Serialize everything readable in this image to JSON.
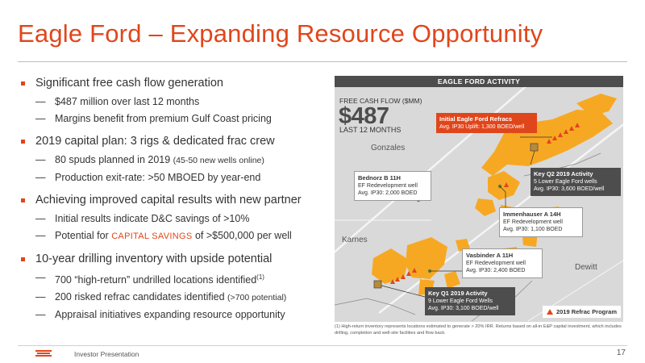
{
  "title": "Eagle Ford – Expanding Resource Opportunity",
  "bullets": [
    {
      "text": "Significant free cash flow generation",
      "subs": [
        "$487 million over last 12 months",
        "Margins benefit from premium Gulf Coast pricing"
      ]
    },
    {
      "text": "2019 capital plan: 3 rigs & dedicated frac crew",
      "sub1_main": "80 spuds planned in 2019 ",
      "sub1_small": "(45-50 new wells online)",
      "sub2": "Production exit-rate: >50 MBOED by year-end"
    },
    {
      "text": "Achieving improved capital results with new partner",
      "sub1": "Initial results indicate D&C savings of >10%",
      "sub2_pre": "Potential for ",
      "sub2_accent": "CAPITAL SAVINGS",
      "sub2_post": " of >$500,000 per well"
    },
    {
      "text": "10-year drilling inventory with upside potential",
      "sub1": "700 “high-return” undrilled locations identified",
      "sub1_sup": "(1)",
      "sub2_main": "200 risked refrac candidates identified ",
      "sub2_small": "(>700 potential)",
      "sub3": "Appraisal initiatives expanding resource opportunity"
    }
  ],
  "map": {
    "header": "EAGLE FORD ACTIVITY",
    "fcf_label": "FREE CASH FLOW ($MM)",
    "fcf_value": "$487",
    "fcf_sub": "LAST 12 MONTHS",
    "counties": [
      "Gonzales",
      "Karnes",
      "Dewitt"
    ],
    "callouts": {
      "refrac": {
        "title": "Initial Eagle Ford Refracs",
        "line1": "Avg. IP30 Uplift: 1,300 BOED/well"
      },
      "bednorz": {
        "title": "Bednorz B 11H",
        "line1": "EF Redevelopment well",
        "line2": "Avg. IP30: 2,000 BOED"
      },
      "key_q2": {
        "title": "Key Q2 2019 Activity",
        "line1": "5 Lower Eagle Ford wells",
        "line2": "Avg. IP30: 3,600 BOED/well"
      },
      "immenhauser": {
        "title": "Immenhauser A 14H",
        "line1": "EF Redevelopment well",
        "line2": "Avg. IP30: 1,100 BOED"
      },
      "vasbinder": {
        "title": "Vasbinder A 11H",
        "line1": "EF Redevelopment well",
        "line2": "Avg. IP30: 2,400 BOED"
      },
      "key_q1": {
        "title": "Key Q1 2019 Activity",
        "line1": "9 Lower Eagle Ford Wells",
        "line2": "Avg. IP30: 3,100 BOED/well"
      }
    },
    "legend": "2019 Refrac Program",
    "colors": {
      "acreage": "#f7a823",
      "accent": "#e0461b",
      "dark": "#4d4d4d",
      "background": "#d9d9d9"
    }
  },
  "footnote": "(1) High-return inventory represents locations estimated to generate > 20% IRR. Returns based on all-in E&P capital investment, which includes drilling, completion and well-site facilities and flow back.",
  "footer": {
    "text": "Investor Presentation",
    "page": "17"
  }
}
